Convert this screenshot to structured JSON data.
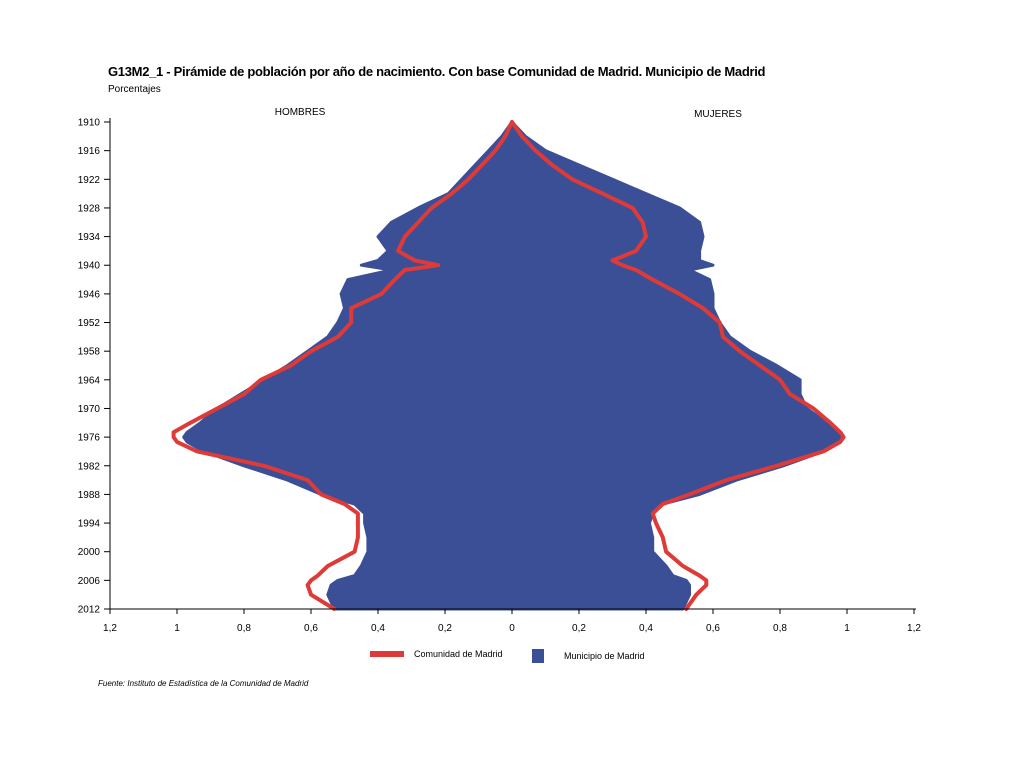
{
  "header": {
    "title": "G13M2_1 - Pirámide de población por año de nacimiento. Con base Comunidad de Madrid.  Municipio de Madrid",
    "subtitle": "Porcentajes"
  },
  "footer": {
    "source": "Fuente: Instituto de Estadística de la Comunidad de Madrid"
  },
  "colors": {
    "municipio": "#3b4f96",
    "comunidad": "#de3a37"
  },
  "chart_data": {
    "type": "area",
    "title": "G13M2_1 - Pirámide de población por año de nacimiento. Con base Comunidad de Madrid.  Municipio de Madrid",
    "subtitle": "Porcentajes",
    "side_labels": {
      "left": "HOMBRES",
      "right": "MUJERES"
    },
    "y_ticks": [
      1910,
      1916,
      1922,
      1928,
      1934,
      1940,
      1946,
      1952,
      1958,
      1964,
      1970,
      1976,
      1982,
      1988,
      1994,
      2000,
      2006,
      2012
    ],
    "x_ticks": [
      -1.2,
      -1,
      -0.8,
      -0.6,
      -0.4,
      -0.2,
      0,
      0.2,
      0.4,
      0.6,
      0.8,
      1,
      1.2
    ],
    "x_tick_labels": [
      "1,2",
      "1",
      "0,8",
      "0,6",
      "0,4",
      "0,2",
      "0",
      "0,2",
      "0,4",
      "0,6",
      "0,8",
      "1",
      "1,2"
    ],
    "xlim": [
      -1.2,
      1.2
    ],
    "ylim": [
      1910,
      2012
    ],
    "legend": [
      "Comunidad de Madrid",
      "Municipio de Madrid"
    ],
    "legend_position": "bottom",
    "years": [
      1910,
      1913,
      1916,
      1919,
      1922,
      1925,
      1928,
      1931,
      1934,
      1937,
      1939,
      1940,
      1941,
      1943,
      1946,
      1949,
      1952,
      1955,
      1958,
      1961,
      1964,
      1967,
      1970,
      1973,
      1975,
      1976,
      1977,
      1979,
      1982,
      1985,
      1988,
      1990,
      1992,
      1994,
      1997,
      2000,
      2003,
      2005,
      2006,
      2007,
      2009,
      2012
    ],
    "series": [
      {
        "name": "Municipio de Madrid",
        "hombres": [
          0.0,
          0.03,
          0.07,
          0.11,
          0.15,
          0.19,
          0.28,
          0.36,
          0.4,
          0.37,
          0.4,
          0.45,
          0.36,
          0.49,
          0.51,
          0.5,
          0.52,
          0.55,
          0.61,
          0.67,
          0.74,
          0.81,
          0.88,
          0.93,
          0.97,
          0.98,
          0.97,
          0.92,
          0.8,
          0.67,
          0.57,
          0.47,
          0.44,
          0.44,
          0.43,
          0.43,
          0.45,
          0.47,
          0.52,
          0.54,
          0.55,
          0.53
        ],
        "mujeres": [
          0.0,
          0.04,
          0.1,
          0.2,
          0.3,
          0.4,
          0.5,
          0.56,
          0.57,
          0.56,
          0.56,
          0.6,
          0.53,
          0.59,
          0.6,
          0.6,
          0.62,
          0.65,
          0.71,
          0.79,
          0.86,
          0.86,
          0.88,
          0.94,
          0.98,
          0.99,
          0.98,
          0.93,
          0.81,
          0.67,
          0.56,
          0.45,
          0.42,
          0.41,
          0.42,
          0.42,
          0.46,
          0.48,
          0.52,
          0.53,
          0.53,
          0.51
        ]
      },
      {
        "name": "Comunidad de Madrid",
        "hombres": [
          0.0,
          0.02,
          0.05,
          0.09,
          0.13,
          0.18,
          0.24,
          0.28,
          0.32,
          0.34,
          0.29,
          0.22,
          0.32,
          0.35,
          0.39,
          0.48,
          0.48,
          0.52,
          0.6,
          0.66,
          0.75,
          0.8,
          0.88,
          0.96,
          1.01,
          1.01,
          1.0,
          0.94,
          0.74,
          0.61,
          0.57,
          0.5,
          0.46,
          0.46,
          0.46,
          0.47,
          0.55,
          0.58,
          0.6,
          0.61,
          0.6,
          0.53
        ],
        "mujeres": [
          0.0,
          0.03,
          0.07,
          0.12,
          0.18,
          0.27,
          0.36,
          0.39,
          0.4,
          0.37,
          0.3,
          0.33,
          0.37,
          0.42,
          0.5,
          0.57,
          0.62,
          0.63,
          0.68,
          0.74,
          0.8,
          0.83,
          0.9,
          0.95,
          0.98,
          0.99,
          0.98,
          0.93,
          0.79,
          0.64,
          0.53,
          0.45,
          0.42,
          0.43,
          0.45,
          0.46,
          0.51,
          0.56,
          0.58,
          0.58,
          0.55,
          0.52
        ]
      }
    ]
  }
}
